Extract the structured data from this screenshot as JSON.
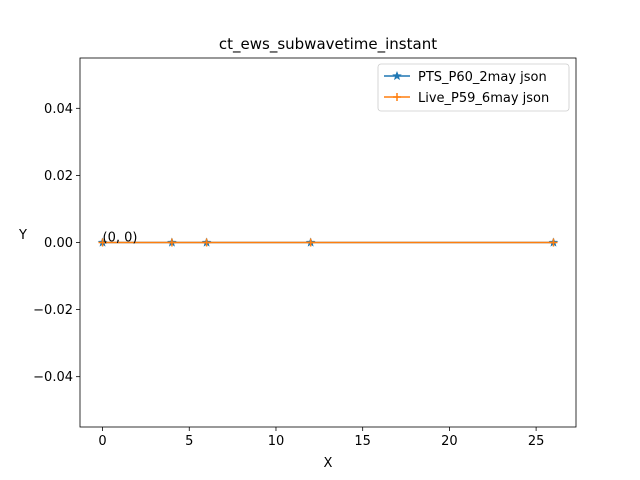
{
  "chart_data": {
    "type": "line",
    "title": "ct_ews_subwavetime_instant",
    "xlabel": "X",
    "ylabel": "Y",
    "xlim": [
      -1.3,
      27.3
    ],
    "ylim": [
      -0.055,
      0.055
    ],
    "xticks": [
      0,
      5,
      10,
      15,
      20,
      25
    ],
    "xtick_labels": [
      "0",
      "5",
      "10",
      "15",
      "20",
      "25"
    ],
    "yticks": [
      -0.04,
      -0.02,
      0.0,
      0.02,
      0.04
    ],
    "ytick_labels": [
      "−0.04",
      "−0.02",
      "0.00",
      "0.02",
      "0.04"
    ],
    "grid": false,
    "legend_position": "top-right",
    "series": [
      {
        "name": "PTS_P60_2may json",
        "color": "#1f77b4",
        "marker": "star",
        "x": [
          0,
          4,
          6,
          12,
          26
        ],
        "y": [
          0,
          0,
          0,
          0,
          0
        ]
      },
      {
        "name": "Live_P59_6may json",
        "color": "#ff7f0e",
        "marker": "plus",
        "x": [
          0,
          4,
          6,
          12,
          26
        ],
        "y": [
          0,
          0,
          0,
          0,
          0
        ]
      }
    ],
    "annotations": [
      {
        "text": "(0, 0)",
        "x": 0,
        "y": 0
      }
    ]
  }
}
